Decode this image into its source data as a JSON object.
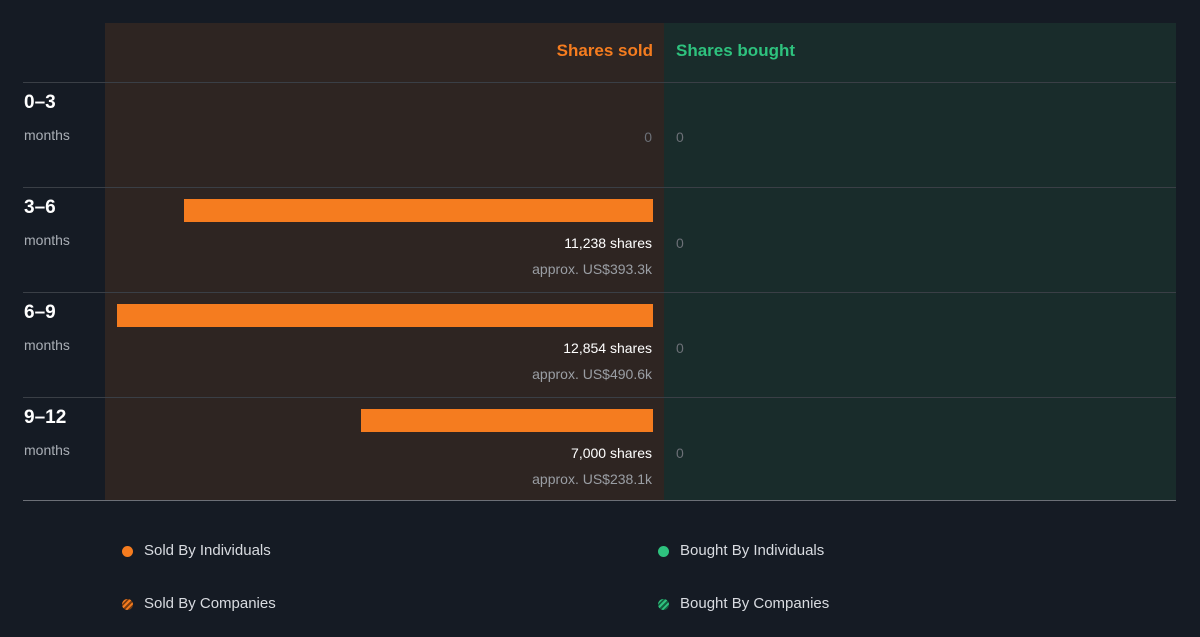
{
  "chart_data": {
    "type": "bar",
    "columns": {
      "sold": "Shares sold",
      "bought": "Shares bought"
    },
    "categories": [
      {
        "period": "0–3",
        "unit": "months"
      },
      {
        "period": "3–6",
        "unit": "months"
      },
      {
        "period": "6–9",
        "unit": "months"
      },
      {
        "period": "9–12",
        "unit": "months"
      }
    ],
    "series": [
      {
        "name": "Shares sold",
        "values": [
          0,
          11238,
          12854,
          7000
        ],
        "labels": [
          "0",
          "11,238 shares",
          "12,854 shares",
          "7,000 shares"
        ],
        "approx": [
          "",
          "approx. US$393.3k",
          "approx. US$490.6k",
          "approx. US$238.1k"
        ]
      },
      {
        "name": "Shares bought",
        "values": [
          0,
          0,
          0,
          0
        ],
        "labels": [
          "0",
          "0",
          "0",
          "0"
        ]
      }
    ],
    "xmax": 12854,
    "legend": {
      "sold_individuals": "Sold By Individuals",
      "bought_individuals": "Bought By Individuals",
      "sold_companies": "Sold By Companies",
      "bought_companies": "Bought By Companies"
    },
    "colors": {
      "sold": "#f57c1f",
      "bought": "#2ec27e"
    }
  }
}
